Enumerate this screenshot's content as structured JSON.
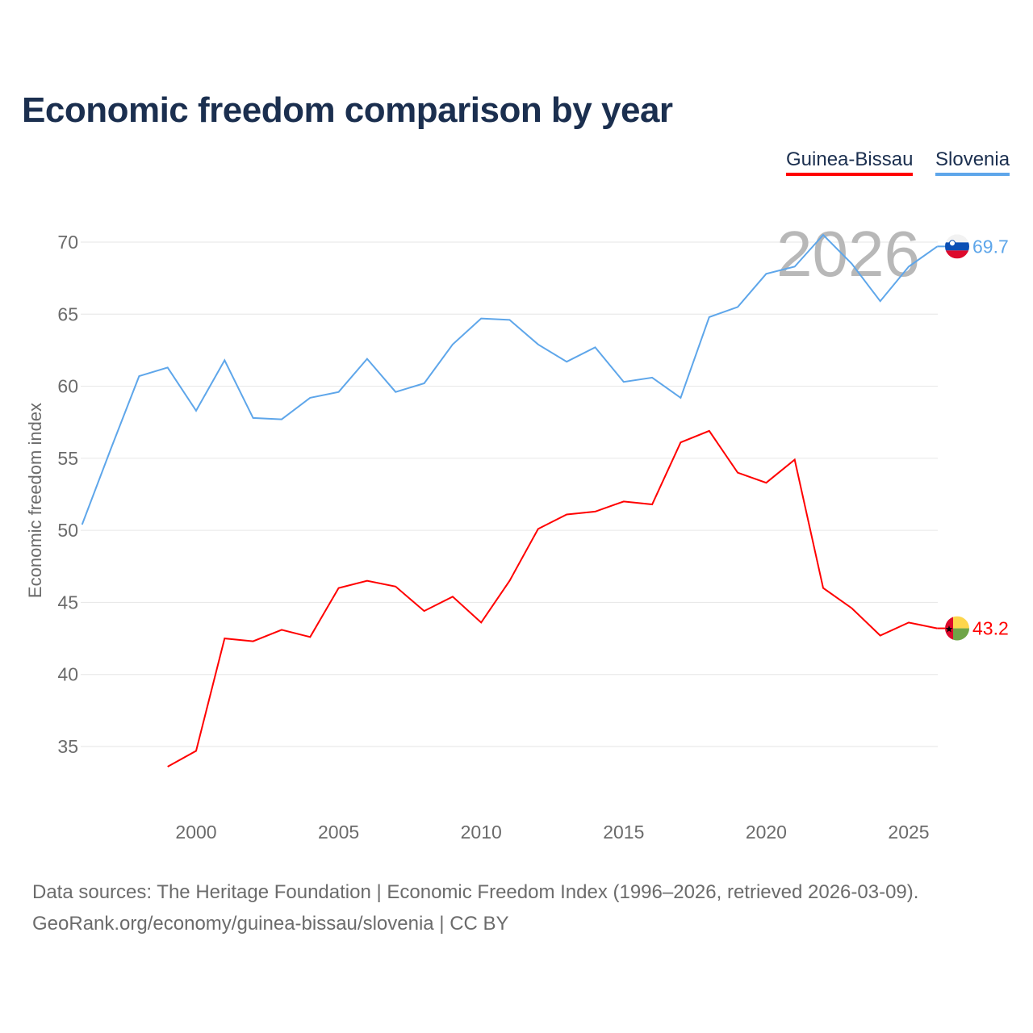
{
  "chart_data": {
    "type": "line",
    "title": "Economic freedom comparison by year",
    "xlabel": "",
    "ylabel": "Economic freedom index",
    "xlim": [
      1996,
      2026
    ],
    "ylim": [
      30,
      72
    ],
    "x_ticks": [
      2000,
      2005,
      2010,
      2015,
      2020,
      2025
    ],
    "y_ticks": [
      35,
      40,
      45,
      50,
      55,
      60,
      65,
      70
    ],
    "grid": "horizontal",
    "legend_position": "top-right",
    "year_watermark": "2026",
    "series": [
      {
        "name": "Guinea-Bissau",
        "color": "#ff0000",
        "end_label": "43.2",
        "flag": "guinea-bissau-flag",
        "x": [
          1999,
          2000,
          2001,
          2002,
          2003,
          2004,
          2005,
          2006,
          2007,
          2008,
          2009,
          2010,
          2011,
          2012,
          2013,
          2014,
          2015,
          2016,
          2017,
          2018,
          2019,
          2020,
          2021,
          2022,
          2023,
          2024,
          2025,
          2026
        ],
        "values": [
          33.6,
          34.7,
          42.5,
          42.3,
          43.1,
          42.6,
          46.0,
          46.5,
          46.1,
          44.4,
          45.4,
          43.6,
          46.5,
          50.1,
          51.1,
          51.3,
          52.0,
          51.8,
          56.1,
          56.9,
          54.0,
          53.3,
          54.9,
          46.0,
          44.6,
          42.7,
          43.6,
          43.2
        ]
      },
      {
        "name": "Slovenia",
        "color": "#5ea6ea",
        "end_label": "69.7",
        "flag": "slovenia-flag",
        "x": [
          1996,
          1997,
          1998,
          1999,
          2000,
          2001,
          2002,
          2003,
          2004,
          2005,
          2006,
          2007,
          2008,
          2009,
          2010,
          2011,
          2012,
          2013,
          2014,
          2015,
          2016,
          2017,
          2018,
          2019,
          2020,
          2021,
          2022,
          2023,
          2024,
          2025,
          2026
        ],
        "values": [
          50.4,
          55.6,
          60.7,
          61.3,
          58.3,
          61.8,
          57.8,
          57.7,
          59.2,
          59.6,
          61.9,
          59.6,
          60.2,
          62.9,
          64.7,
          64.6,
          62.9,
          61.7,
          62.7,
          60.3,
          60.6,
          59.2,
          64.8,
          65.5,
          67.8,
          68.3,
          70.5,
          68.5,
          65.9,
          68.3,
          69.7
        ]
      }
    ]
  },
  "footer": {
    "line1": "Data sources: The Heritage Foundation | Economic Freedom Index (1996–2026, retrieved 2026-03-09).",
    "line2": "GeoRank.org/economy/guinea-bissau/slovenia | CC BY"
  }
}
